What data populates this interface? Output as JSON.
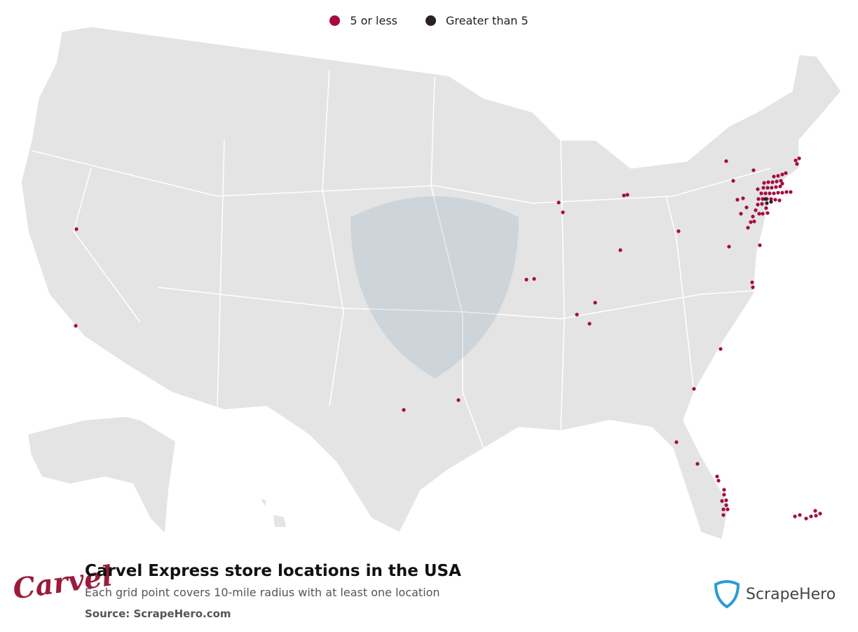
{
  "legend": {
    "items": [
      {
        "label": "5 or less",
        "color": "#a50d3c"
      },
      {
        "label": "Greater than 5",
        "color": "#2b2024"
      }
    ]
  },
  "footer": {
    "title": "Carvel Express store locations in the USA",
    "subtitle": "Each grid point covers 10-mile radius with at least one location",
    "source": "Source: ScrapeHero.com"
  },
  "logo": {
    "text": "Carvel"
  },
  "brand": {
    "name": "ScrapeHero"
  }
}
